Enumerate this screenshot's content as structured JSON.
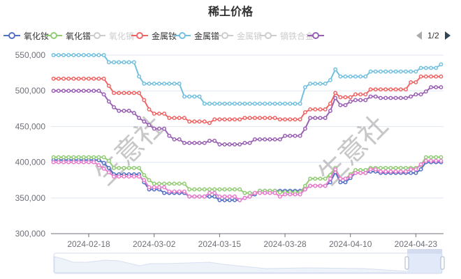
{
  "watermark": "生意社",
  "legend": {
    "items": [
      {
        "label": "氧化钕",
        "color": "#5470c6",
        "enabled": true
      },
      {
        "label": "氧化镨",
        "color": "#91cc75",
        "enabled": true
      },
      {
        "label": "氧化镝",
        "color": "#cccccc",
        "enabled": false
      },
      {
        "label": "金属钕",
        "color": "#ee6666",
        "enabled": true
      },
      {
        "label": "金属镨",
        "color": "#73c0de",
        "enabled": true
      },
      {
        "label": "金属镝",
        "color": "#cccccc",
        "enabled": false
      },
      {
        "label": "镝铁合金",
        "color": "#cccccc",
        "enabled": false
      },
      {
        "label": "",
        "color": "#9a60b4",
        "enabled": true
      }
    ],
    "page": "1/2"
  },
  "datazoom": {
    "start": 90,
    "end": 100
  },
  "chart_data": {
    "type": "line",
    "title": "稀土价格",
    "xlabel": "",
    "ylabel": "",
    "ylim": [
      300000,
      550000
    ],
    "ytick_labels": [
      "300,000",
      "350,000",
      "400,000",
      "450,000",
      "500,000",
      "550,000"
    ],
    "yticks": [
      300000,
      350000,
      400000,
      450000,
      500000,
      550000
    ],
    "grid": true,
    "legend_position": "top",
    "x_label_indices": [
      7,
      20,
      33,
      46,
      59,
      72
    ],
    "categories": [
      "2024-02-11",
      "2024-02-12",
      "2024-02-13",
      "2024-02-14",
      "2024-02-15",
      "2024-02-16",
      "2024-02-17",
      "2024-02-18",
      "2024-02-19",
      "2024-02-20",
      "2024-02-21",
      "2024-02-22",
      "2024-02-23",
      "2024-02-24",
      "2024-02-25",
      "2024-02-26",
      "2024-02-27",
      "2024-02-28",
      "2024-02-29",
      "2024-03-01",
      "2024-03-02",
      "2024-03-03",
      "2024-03-04",
      "2024-03-05",
      "2024-03-06",
      "2024-03-07",
      "2024-03-08",
      "2024-03-09",
      "2024-03-10",
      "2024-03-11",
      "2024-03-12",
      "2024-03-13",
      "2024-03-14",
      "2024-03-15",
      "2024-03-16",
      "2024-03-17",
      "2024-03-18",
      "2024-03-19",
      "2024-03-20",
      "2024-03-21",
      "2024-03-22",
      "2024-03-23",
      "2024-03-24",
      "2024-03-25",
      "2024-03-26",
      "2024-03-27",
      "2024-03-28",
      "2024-03-29",
      "2024-03-30",
      "2024-03-31",
      "2024-04-01",
      "2024-04-02",
      "2024-04-03",
      "2024-04-04",
      "2024-04-05",
      "2024-04-06",
      "2024-04-07",
      "2024-04-08",
      "2024-04-09",
      "2024-04-10",
      "2024-04-11",
      "2024-04-12",
      "2024-04-13",
      "2024-04-14",
      "2024-04-15",
      "2024-04-16",
      "2024-04-17",
      "2024-04-18",
      "2024-04-19",
      "2024-04-20",
      "2024-04-21",
      "2024-04-22",
      "2024-04-23",
      "2024-04-24",
      "2024-04-25",
      "2024-04-26",
      "2024-04-27",
      "2024-04-28"
    ],
    "series": [
      {
        "name": "氧化钕",
        "color": "#5470c6",
        "values": [
          403000,
          403000,
          403000,
          403000,
          403000,
          403000,
          403000,
          403000,
          403000,
          403000,
          399000,
          392000,
          383000,
          383000,
          383000,
          383000,
          383000,
          383000,
          372000,
          362000,
          362000,
          362000,
          357000,
          357000,
          357000,
          357000,
          357000,
          352000,
          352000,
          352000,
          352000,
          352000,
          352000,
          347000,
          347000,
          347000,
          347000,
          347000,
          350000,
          352000,
          355000,
          360000,
          360000,
          360000,
          360000,
          360000,
          360000,
          360000,
          360000,
          360000,
          362000,
          367000,
          367000,
          367000,
          367000,
          372000,
          386000,
          372000,
          372000,
          378000,
          385000,
          385000,
          385000,
          387000,
          387000,
          385000,
          385000,
          385000,
          385000,
          385000,
          385000,
          385000,
          385000,
          390000,
          400000,
          400000,
          400000,
          400000
        ]
      },
      {
        "name": "氧化镨",
        "color": "#91cc75",
        "values": [
          407000,
          407000,
          407000,
          407000,
          407000,
          407000,
          407000,
          407000,
          407000,
          407000,
          407000,
          402000,
          392000,
          392000,
          392000,
          392000,
          392000,
          392000,
          382000,
          375000,
          370000,
          370000,
          370000,
          370000,
          370000,
          370000,
          370000,
          362000,
          362000,
          362000,
          362000,
          362000,
          362000,
          362000,
          362000,
          362000,
          362000,
          362000,
          357000,
          357000,
          357000,
          360000,
          360000,
          360000,
          360000,
          358000,
          358000,
          358000,
          358000,
          358000,
          367000,
          377000,
          377000,
          377000,
          377000,
          382000,
          392000,
          377000,
          377000,
          383000,
          389000,
          389000,
          389000,
          392000,
          392000,
          392000,
          392000,
          392000,
          392000,
          392000,
          392000,
          392000,
          392000,
          396000,
          407000,
          407000,
          407000,
          407000
        ]
      },
      {
        "name": "金属钕",
        "color": "#ee6666",
        "values": [
          517000,
          517000,
          517000,
          517000,
          517000,
          517000,
          517000,
          517000,
          517000,
          517000,
          517000,
          507000,
          497000,
          497000,
          497000,
          497000,
          497000,
          497000,
          487000,
          474000,
          468000,
          468000,
          468000,
          462000,
          462000,
          462000,
          462000,
          457000,
          457000,
          457000,
          457000,
          455000,
          460000,
          460000,
          460000,
          460000,
          460000,
          460000,
          462000,
          462000,
          462000,
          462000,
          462000,
          462000,
          462000,
          460000,
          460000,
          460000,
          460000,
          460000,
          470000,
          474000,
          474000,
          474000,
          474000,
          482000,
          497000,
          491000,
          491000,
          491000,
          495000,
          495000,
          495000,
          502000,
          502000,
          502000,
          502000,
          502000,
          502000,
          502000,
          502000,
          512000,
          512000,
          520000,
          520000,
          520000,
          520000,
          520000
        ]
      },
      {
        "name": "金属镨",
        "color": "#73c0de",
        "values": [
          550000,
          550000,
          550000,
          550000,
          550000,
          550000,
          550000,
          550000,
          550000,
          550000,
          550000,
          540000,
          540000,
          540000,
          540000,
          540000,
          540000,
          520000,
          510000,
          510000,
          510000,
          510000,
          510000,
          510000,
          510000,
          510000,
          492000,
          492000,
          492000,
          492000,
          482000,
          482000,
          482000,
          482000,
          482000,
          482000,
          482000,
          482000,
          482000,
          482000,
          482000,
          482000,
          482000,
          482000,
          482000,
          482000,
          482000,
          482000,
          482000,
          482000,
          505000,
          510000,
          510000,
          510000,
          510000,
          515000,
          530000,
          520000,
          520000,
          520000,
          520000,
          520000,
          520000,
          527000,
          527000,
          527000,
          527000,
          527000,
          527000,
          527000,
          527000,
          527000,
          527000,
          532000,
          532000,
          532000,
          532000,
          537000
        ]
      },
      {
        "name": "",
        "color": "#9a60b4",
        "values": [
          500000,
          500000,
          500000,
          500000,
          500000,
          500000,
          500000,
          500000,
          500000,
          500000,
          495000,
          485000,
          477000,
          472000,
          472000,
          472000,
          469000,
          462000,
          457000,
          452000,
          447000,
          447000,
          447000,
          437000,
          432000,
          432000,
          427000,
          427000,
          427000,
          427000,
          427000,
          430000,
          430000,
          425000,
          425000,
          425000,
          425000,
          425000,
          427000,
          427000,
          432000,
          432000,
          432000,
          432000,
          432000,
          432000,
          437000,
          437000,
          437000,
          437000,
          447000,
          462000,
          462000,
          462000,
          462000,
          472000,
          490000,
          480000,
          480000,
          485000,
          487000,
          487000,
          487000,
          492000,
          492000,
          490000,
          490000,
          490000,
          490000,
          490000,
          490000,
          492000,
          495000,
          495000,
          499000,
          505000,
          505000,
          505000
        ]
      },
      {
        "name": "",
        "color": "#ea7ccc",
        "values": [
          400000,
          400000,
          400000,
          400000,
          400000,
          400000,
          400000,
          400000,
          400000,
          396000,
          391000,
          386000,
          380000,
          380000,
          380000,
          380000,
          380000,
          380000,
          375000,
          365000,
          365000,
          365000,
          365000,
          359000,
          359000,
          359000,
          359000,
          352000,
          352000,
          352000,
          352000,
          357000,
          357000,
          352000,
          352000,
          352000,
          352000,
          347000,
          350000,
          352000,
          357000,
          357000,
          357000,
          357000,
          357000,
          352000,
          355000,
          355000,
          355000,
          355000,
          362000,
          367000,
          367000,
          367000,
          367000,
          377000,
          390000,
          377000,
          377000,
          381000,
          385000,
          385000,
          385000,
          390000,
          390000,
          387000,
          387000,
          387000,
          387000,
          387000,
          387000,
          390000,
          390000,
          397000,
          402000,
          402000,
          402000,
          402000
        ]
      }
    ]
  }
}
